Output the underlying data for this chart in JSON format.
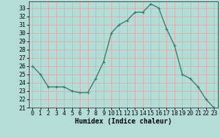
{
  "x": [
    0,
    1,
    2,
    3,
    4,
    5,
    6,
    7,
    8,
    9,
    10,
    11,
    12,
    13,
    14,
    15,
    16,
    17,
    18,
    19,
    20,
    21,
    22,
    23
  ],
  "y": [
    26,
    25,
    23.5,
    23.5,
    23.5,
    23,
    22.8,
    22.8,
    24.5,
    26.5,
    30,
    31,
    31.5,
    32.5,
    32.5,
    33.5,
    33,
    30.5,
    28.5,
    25,
    24.5,
    23.5,
    22,
    21
  ],
  "line_color": "#2e7d6e",
  "marker": "+",
  "bg_color": "#b4ddd8",
  "grid_color": "#e8a0a0",
  "xlabel": "Humidex (Indice chaleur)",
  "xlim": [
    -0.5,
    23.5
  ],
  "ylim": [
    21,
    33.8
  ],
  "yticks": [
    21,
    22,
    23,
    24,
    25,
    26,
    27,
    28,
    29,
    30,
    31,
    32,
    33
  ],
  "xticks": [
    0,
    1,
    2,
    3,
    4,
    5,
    6,
    7,
    8,
    9,
    10,
    11,
    12,
    13,
    14,
    15,
    16,
    17,
    18,
    19,
    20,
    21,
    22,
    23
  ],
  "xlabel_fontsize": 7,
  "tick_fontsize": 6,
  "linewidth": 1.0,
  "markersize": 3,
  "marker_ew": 0.8
}
